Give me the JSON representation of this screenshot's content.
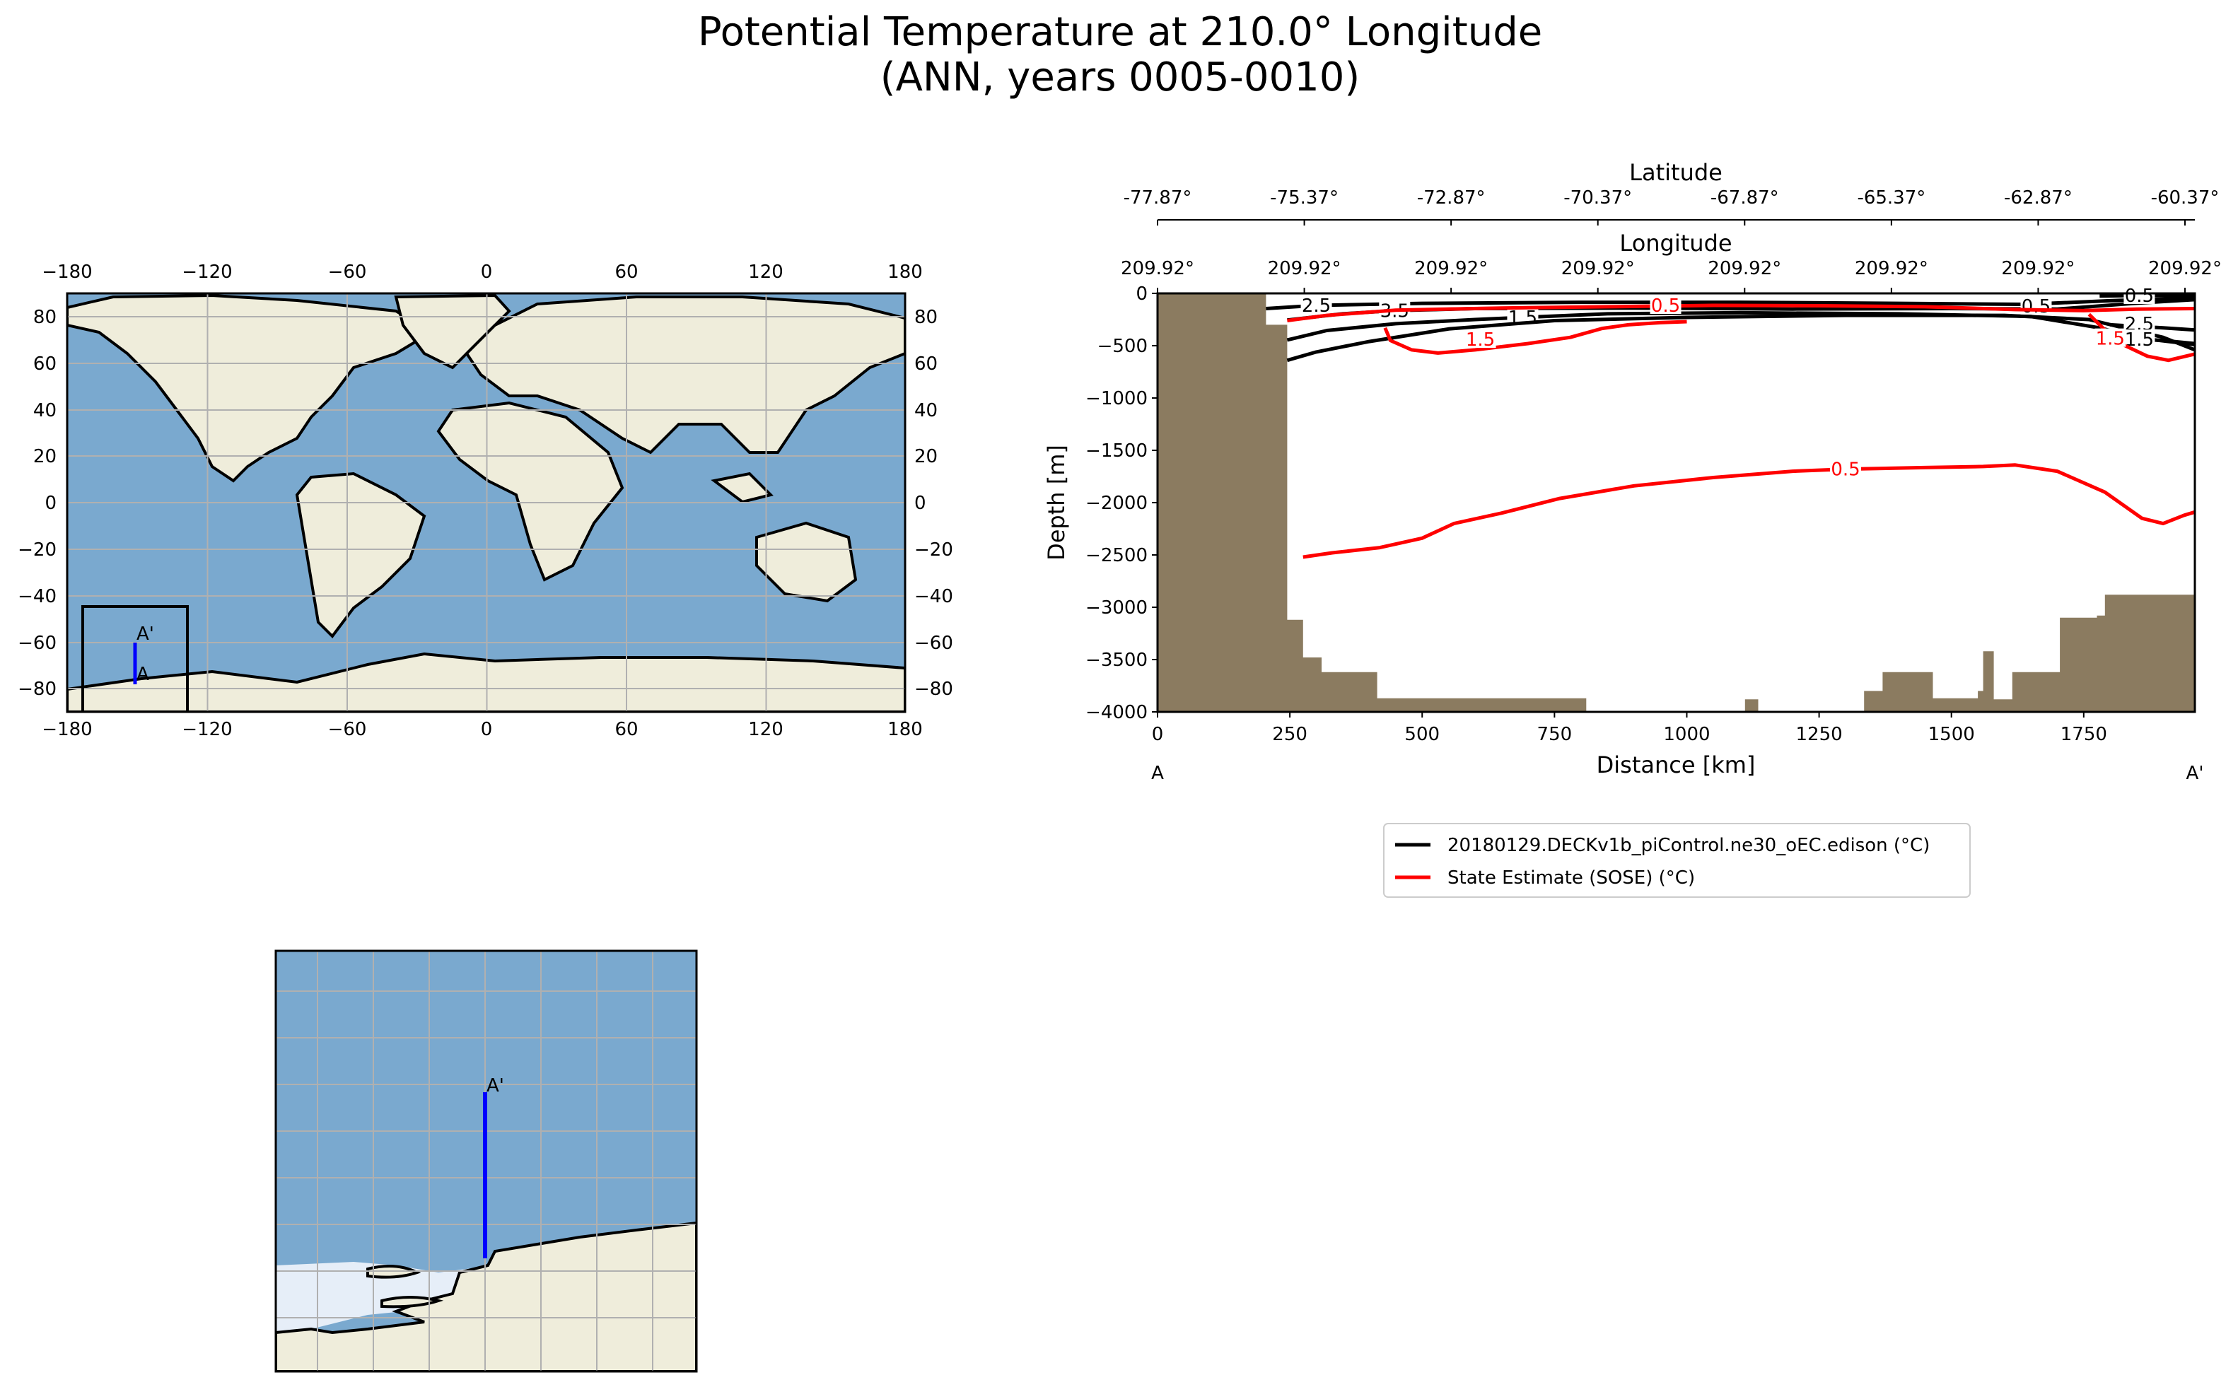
{
  "figure": {
    "title_line1": "Potential Temperature at 210.0° Longitude",
    "title_line2": "(ANN, years 0005-0010)"
  },
  "colors": {
    "ocean": "#7aa9cf",
    "land": "#efeddb",
    "bathymetry": "#8b7b60",
    "grid": "#b0b0b0",
    "model": "#000000",
    "obs": "#ff0000",
    "transect": "#0000ff",
    "ice": "#e6eef8"
  },
  "world_map": {
    "x_ticks": [
      "−180",
      "−120",
      "−60",
      "0",
      "60",
      "120",
      "180"
    ],
    "y_ticks": [
      "80",
      "60",
      "40",
      "20",
      "0",
      "−20",
      "−40",
      "−60",
      "−80"
    ],
    "start_label": "A",
    "end_label": "A'"
  },
  "inset_map": {
    "end_label": "A'"
  },
  "chart_data": {
    "type": "line",
    "title": "Potential Temperature at 210.0° Longitude (ANN, years 0005-0010)",
    "xlabel": "Distance [km]",
    "ylabel": "Depth [m]",
    "xlim": [
      0,
      1960
    ],
    "ylim": [
      -4000,
      0
    ],
    "x_ticks": [
      0,
      250,
      500,
      750,
      1000,
      1250,
      1500,
      1750
    ],
    "y_ticks": [
      0,
      -500,
      -1000,
      -1500,
      -2000,
      -2500,
      -3000,
      -3500,
      -4000
    ],
    "start_label": "A",
    "end_label": "A'",
    "latitude_axis": {
      "label": "Latitude",
      "ticks": [
        "-77.87°",
        "-75.37°",
        "-72.87°",
        "-70.37°",
        "-67.87°",
        "-65.37°",
        "-62.87°",
        "-60.37°"
      ]
    },
    "longitude_axis": {
      "label": "Longitude",
      "ticks": [
        "209.92°",
        "209.92°",
        "209.92°",
        "209.92°",
        "209.92°",
        "209.92°",
        "209.92°",
        "209.92°"
      ]
    },
    "legend": [
      {
        "label": "20180129.DECKv1b_piControl.ne30_oEC.edison (°C)",
        "color": "#000000"
      },
      {
        "label": "State Estimate (SOSE) (°C)",
        "color": "#ff0000"
      }
    ],
    "bathymetry": [
      [
        0,
        0
      ],
      [
        205,
        0
      ],
      [
        205,
        -300
      ],
      [
        245,
        -300
      ],
      [
        245,
        -3120
      ],
      [
        275,
        -3120
      ],
      [
        275,
        -3480
      ],
      [
        310,
        -3480
      ],
      [
        310,
        -3620
      ],
      [
        415,
        -3620
      ],
      [
        415,
        -3870
      ],
      [
        810,
        -3870
      ],
      [
        810,
        -4000
      ],
      [
        1110,
        -4000
      ],
      [
        1110,
        -3880
      ],
      [
        1135,
        -3880
      ],
      [
        1135,
        -4000
      ],
      [
        1335,
        -4000
      ],
      [
        1335,
        -3800
      ],
      [
        1370,
        -3800
      ],
      [
        1370,
        -3620
      ],
      [
        1465,
        -3620
      ],
      [
        1465,
        -3870
      ],
      [
        1550,
        -3870
      ],
      [
        1550,
        -3800
      ],
      [
        1560,
        -3800
      ],
      [
        1560,
        -3420
      ],
      [
        1580,
        -3420
      ],
      [
        1580,
        -3880
      ],
      [
        1615,
        -3880
      ],
      [
        1615,
        -3620
      ],
      [
        1705,
        -3620
      ],
      [
        1705,
        -3100
      ],
      [
        1775,
        -3100
      ],
      [
        1775,
        -3080
      ],
      [
        1790,
        -3080
      ],
      [
        1790,
        -2880
      ],
      [
        1960,
        -2880
      ],
      [
        1960,
        -4000
      ],
      [
        0,
        -4000
      ]
    ],
    "series": [
      {
        "name": "20180129.DECKv1b_piControl.ne30_oEC.edison (°C)",
        "color": "#000000",
        "contours": [
          {
            "level": "2.5",
            "label_at": [
              300,
              -115
            ],
            "points": [
              [
                205,
                -145
              ],
              [
                300,
                -115
              ],
              [
                500,
                -95
              ],
              [
                800,
                -85
              ],
              [
                1100,
                -85
              ],
              [
                1400,
                -95
              ],
              [
                1640,
                -105
              ],
              [
                1800,
                -70
              ],
              [
                1960,
                -40
              ]
            ]
          },
          {
            "level": "3.5",
            "label_at": [
              448,
              -165
            ],
            "points": [
              [
                245,
                -255
              ],
              [
                350,
                -195
              ],
              [
                448,
                -165
              ],
              [
                600,
                -145
              ],
              [
                900,
                -140
              ],
              [
                1200,
                -150
              ],
              [
                1500,
                -145
              ],
              [
                1700,
                -150
              ],
              [
                1845,
                -95
              ],
              [
                1960,
                -60
              ]
            ]
          },
          {
            "level": "1.5",
            "label_at": [
              690,
              -230
            ],
            "points": [
              [
                245,
                -445
              ],
              [
                320,
                -355
              ],
              [
                450,
                -290
              ],
              [
                600,
                -250
              ],
              [
                690,
                -230
              ],
              [
                850,
                -195
              ],
              [
                1100,
                -185
              ],
              [
                1400,
                -195
              ],
              [
                1650,
                -220
              ],
              [
                1780,
                -330
              ],
              [
                1860,
                -430
              ],
              [
                1960,
                -490
              ]
            ]
          },
          {
            "level": "0.5",
            "label_at": [
              1660,
              -120
            ],
            "points": [
              [
                245,
                -640
              ],
              [
                300,
                -560
              ],
              [
                400,
                -460
              ],
              [
                550,
                -340
              ],
              [
                750,
                -260
              ],
              [
                1000,
                -230
              ],
              [
                1300,
                -210
              ],
              [
                1600,
                -210
              ],
              [
                1760,
                -250
              ],
              [
                1900,
                -420
              ],
              [
                1960,
                -540
              ]
            ]
          },
          {
            "level": "0.5",
            "label_at": [
              1855,
              -20
            ],
            "points": [
              [
                1780,
                -25
              ],
              [
                1855,
                -20
              ],
              [
                1960,
                -15
              ]
            ]
          },
          {
            "level": "2.5",
            "label_at": [
              1855,
              -290
            ],
            "points": [
              [
                1800,
                -300
              ],
              [
                1900,
                -330
              ],
              [
                1960,
                -350
              ]
            ]
          },
          {
            "level": "1.5",
            "label_at": [
              1855,
              -440
            ],
            "points": [
              [
                1800,
                -430
              ],
              [
                1900,
                -450
              ],
              [
                1960,
                -480
              ]
            ]
          }
        ]
      },
      {
        "name": "State Estimate (SOSE) (°C)",
        "color": "#ff0000",
        "contours": [
          {
            "level": "0.5",
            "label_at": [
              960,
              -115
            ],
            "points": [
              [
                245,
                -260
              ],
              [
                320,
                -210
              ],
              [
                450,
                -160
              ],
              [
                650,
                -140
              ],
              [
                850,
                -128
              ],
              [
                1050,
                -115
              ],
              [
                1250,
                -118
              ],
              [
                1450,
                -128
              ],
              [
                1620,
                -155
              ],
              [
                1750,
                -165
              ],
              [
                1850,
                -150
              ],
              [
                1960,
                -145
              ]
            ]
          },
          {
            "level": "1.5",
            "label_at": [
              610,
              -440
            ],
            "points": [
              [
                430,
                -330
              ],
              [
                440,
                -450
              ],
              [
                480,
                -540
              ],
              [
                530,
                -570
              ],
              [
                600,
                -540
              ],
              [
                700,
                -480
              ],
              [
                780,
                -420
              ],
              [
                840,
                -335
              ],
              [
                890,
                -300
              ],
              [
                950,
                -280
              ],
              [
                1000,
                -270
              ]
            ]
          },
          {
            "level": "1.5",
            "label_at": [
              1800,
              -430
            ],
            "points": [
              [
                1760,
                -200
              ],
              [
                1790,
                -350
              ],
              [
                1820,
                -480
              ],
              [
                1870,
                -600
              ],
              [
                1910,
                -640
              ],
              [
                1960,
                -580
              ]
            ]
          },
          {
            "level": "0.5",
            "label_at": [
              1300,
              -1680
            ],
            "points": [
              [
                275,
                -2520
              ],
              [
                330,
                -2480
              ],
              [
                420,
                -2430
              ],
              [
                500,
                -2340
              ],
              [
                560,
                -2200
              ],
              [
                650,
                -2100
              ],
              [
                760,
                -1960
              ],
              [
                900,
                -1840
              ],
              [
                1050,
                -1760
              ],
              [
                1200,
                -1700
              ],
              [
                1300,
                -1680
              ],
              [
                1450,
                -1665
              ],
              [
                1560,
                -1655
              ],
              [
                1620,
                -1640
              ],
              [
                1700,
                -1700
              ],
              [
                1790,
                -1900
              ],
              [
                1860,
                -2150
              ],
              [
                1900,
                -2200
              ],
              [
                1940,
                -2120
              ],
              [
                1960,
                -2090
              ]
            ]
          }
        ]
      }
    ]
  }
}
